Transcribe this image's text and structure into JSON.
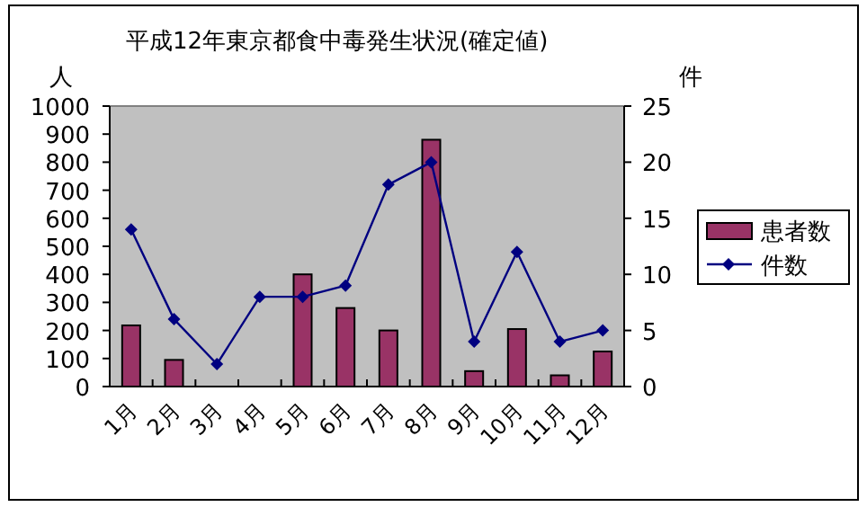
{
  "chart_data": {
    "type": "bar",
    "title": "平成12年東京都食中毒発生状況(確定値)",
    "ylabel": "人",
    "y2label": "件",
    "categories": [
      "1月",
      "2月",
      "3月",
      "4月",
      "5月",
      "6月",
      "7月",
      "8月",
      "9月",
      "10月",
      "11月",
      "12月"
    ],
    "series": [
      {
        "name": "患者数",
        "color": "#993366",
        "values": [
          218,
          95,
          0,
          0,
          400,
          280,
          200,
          880,
          55,
          205,
          40,
          125
        ]
      },
      {
        "name": "件数",
        "type": "line",
        "axis": "y2",
        "color": "#000080",
        "values": [
          14,
          6,
          2,
          8,
          8,
          9,
          18,
          20,
          4,
          12,
          4,
          5
        ]
      }
    ],
    "ylim": [
      0,
      1000
    ],
    "yticks": [
      0,
      100,
      200,
      300,
      400,
      500,
      600,
      700,
      800,
      900,
      1000
    ],
    "y2lim": [
      0,
      25
    ],
    "y2ticks": [
      0,
      5,
      10,
      15,
      20,
      25
    ],
    "legend": "right",
    "marker": "diamond",
    "grid": false
  }
}
